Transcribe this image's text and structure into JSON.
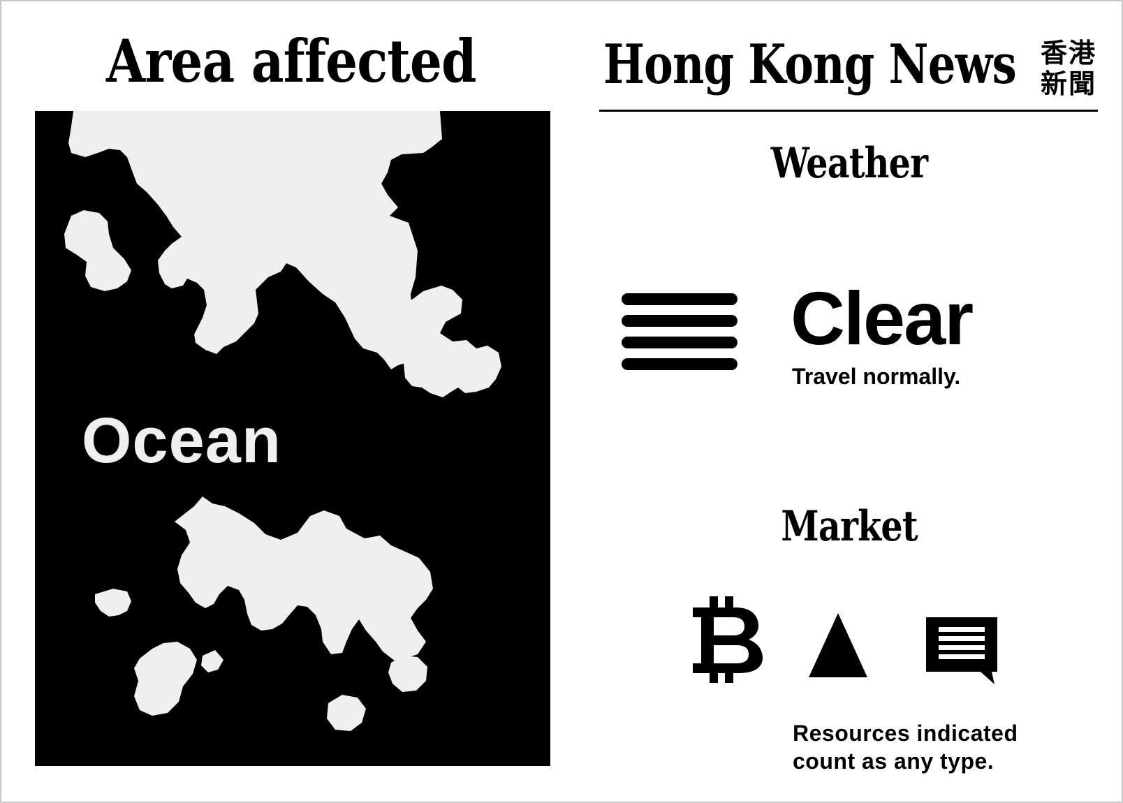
{
  "card": {
    "left_title": "Area affected",
    "right_title": "Hong Kong News",
    "right_title_cjk_line1": "香港",
    "right_title_cjk_line2": "新聞"
  },
  "map": {
    "ocean_label": "Ocean",
    "colors": {
      "ocean": "#000000",
      "land": "#efefef"
    }
  },
  "weather": {
    "heading": "Weather",
    "icon": "fog-lines-icon",
    "status": "Clear",
    "note": "Travel normally."
  },
  "market": {
    "heading": "Market",
    "icons": [
      "bitcoin-icon",
      "triangle-icon",
      "chat-message-icon"
    ],
    "note_line1": "Resources indicated",
    "note_line2": "count as any type."
  }
}
